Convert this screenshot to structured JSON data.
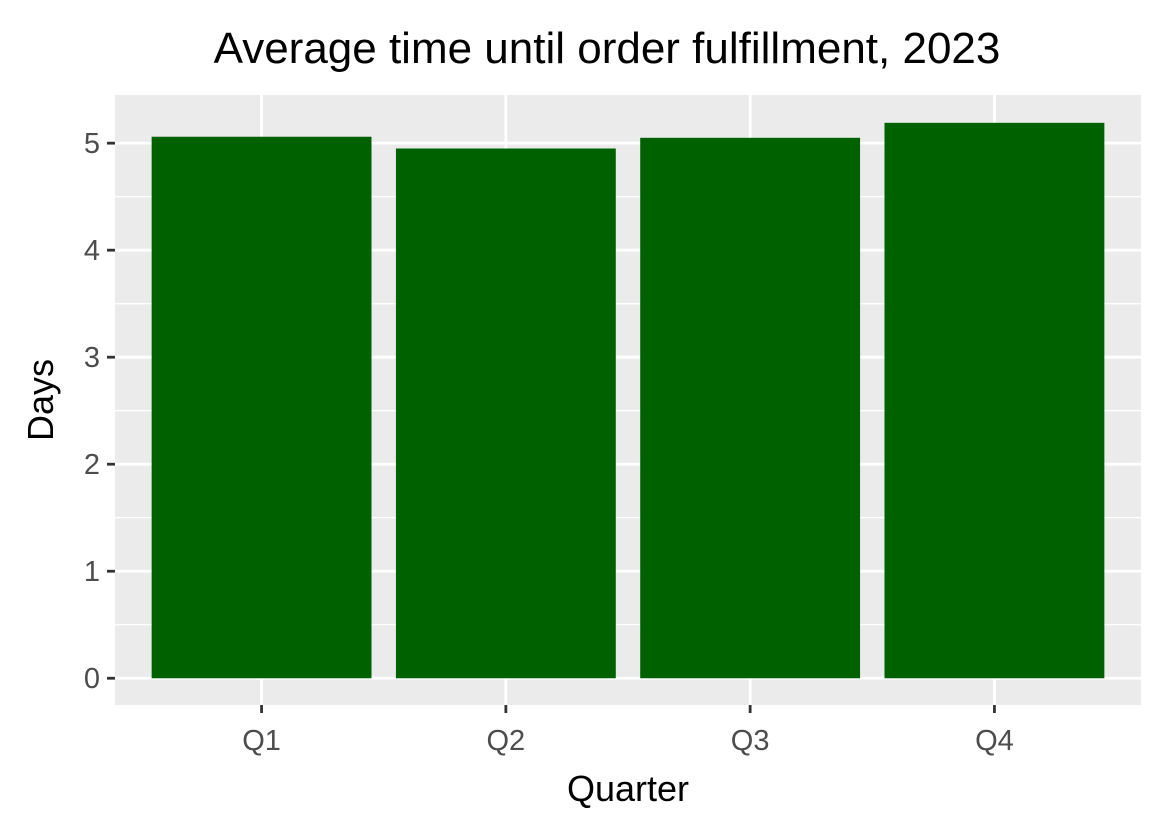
{
  "chart_data": {
    "type": "bar",
    "title": "Average time until order fulfillment, 2023",
    "xlabel": "Quarter",
    "ylabel": "Days",
    "categories": [
      "Q1",
      "Q2",
      "Q3",
      "Q4"
    ],
    "values": [
      5.06,
      4.95,
      5.05,
      5.19
    ],
    "ylim": [
      -0.25,
      5.45
    ],
    "yticks": [
      0,
      1,
      2,
      3,
      4,
      5
    ],
    "ytick_labels": [
      "0",
      "1",
      "2",
      "3",
      "4",
      "5"
    ],
    "grid": true,
    "legend": "none",
    "colors": {
      "bar": "#006100",
      "panel": "#ebebeb",
      "grid": "#ffffff",
      "tick": "#333333"
    }
  }
}
